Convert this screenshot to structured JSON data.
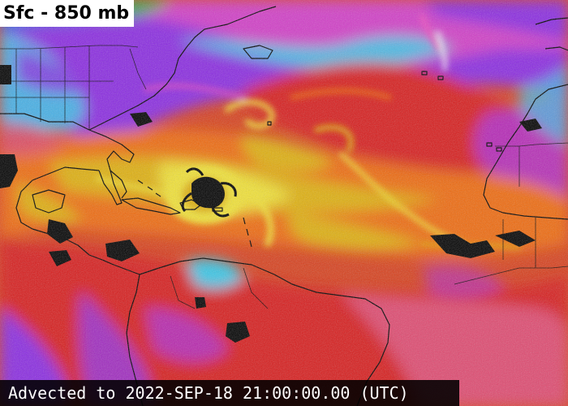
{
  "title": "Sfc - 850 mb",
  "footer": {
    "timestamp_label": "Advected to 2022-SEP-18 21:00:00.00 (UTC)"
  },
  "palette": {
    "very_dry": "#1a0a2e",
    "dry_purple": "#8a2be2",
    "magenta": "#d23cc8",
    "cyan": "#38c8e8",
    "blue": "#2a60e0",
    "green": "#2ea84a",
    "red": "#d81e1e",
    "orange": "#f06a10",
    "gold": "#e0b010",
    "yellow": "#f2e234",
    "land_outline": "#000000"
  },
  "features": {
    "hurricane_icon": "hurricane-eye-icon"
  }
}
